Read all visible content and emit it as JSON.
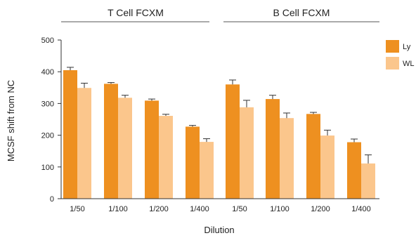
{
  "chart_data": {
    "type": "bar",
    "groups": [
      "T Cell FCXM",
      "B Cell FCXM"
    ],
    "categories": [
      "1/50",
      "1/100",
      "1/200",
      "1/400",
      "1/50",
      "1/100",
      "1/200",
      "1/400"
    ],
    "series": [
      {
        "name": "Ly",
        "color": "#ee9020",
        "values": [
          405,
          362,
          309,
          227,
          360,
          314,
          267,
          178
        ],
        "errors": [
          9,
          4,
          5,
          4,
          14,
          12,
          5,
          10
        ]
      },
      {
        "name": "WL",
        "color": "#fbc68c",
        "values": [
          349,
          318,
          261,
          179,
          288,
          254,
          199,
          111
        ],
        "errors": [
          15,
          8,
          5,
          10,
          22,
          16,
          17,
          27
        ]
      }
    ],
    "title": "",
    "xlabel": "Dilution",
    "ylabel": "MCSF shift from NC",
    "ylim": [
      0,
      500
    ],
    "yticks": [
      0,
      100,
      200,
      300,
      400,
      500
    ],
    "grid": false,
    "legend_position": "top-right"
  }
}
